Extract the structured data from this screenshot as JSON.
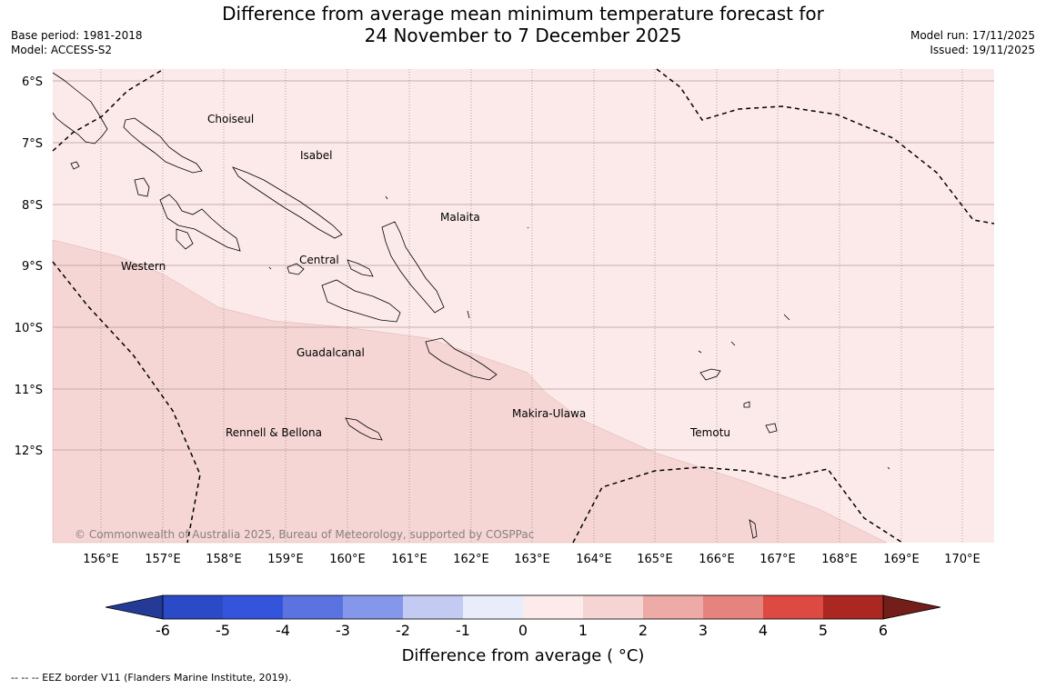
{
  "title": {
    "line1": "Difference from average mean minimum temperature forecast for",
    "line2": "24 November to 7 December 2025"
  },
  "meta_left": {
    "base_period": "Base period: 1981-2018",
    "model": "Model: ACCESS-S2"
  },
  "meta_right": {
    "model_run": "Model run: 17/11/2025",
    "issued": "Issued: 19/11/2025"
  },
  "map": {
    "lat_labels": [
      "6°S",
      "7°S",
      "8°S",
      "9°S",
      "10°S",
      "11°S",
      "12°S"
    ],
    "lon_labels": [
      "156°E",
      "157°E",
      "158°E",
      "159°E",
      "160°E",
      "161°E",
      "162°E",
      "163°E",
      "164°E",
      "165°E",
      "166°E",
      "167°E",
      "168°E",
      "169°E",
      "170°E"
    ],
    "regions": {
      "choiseul": "Choiseul",
      "isabel": "Isabel",
      "malaita": "Malaita",
      "central": "Central",
      "western": "Western",
      "guadalcanal": "Guadalcanal",
      "makira": "Makira-Ulawa",
      "rennell": "Rennell & Bellona",
      "temotu": "Temotu"
    },
    "copyright": "© Commonwealth of Australia 2025, Bureau of Meteorology, supported by COSPPac",
    "zone_colors": {
      "range_0_1": "#fbeae9",
      "range_1_2": "#f5d6d5"
    }
  },
  "colorbar": {
    "ticks": [
      "-6",
      "-5",
      "-4",
      "-3",
      "-2",
      "-1",
      "0",
      "1",
      "2",
      "3",
      "4",
      "5",
      "6"
    ],
    "label": "Difference from average ( °C)",
    "colors": [
      "#253a96",
      "#2a4ac8",
      "#3454dc",
      "#5b73e1",
      "#8597ea",
      "#c3cbf3",
      "#e8ecfb",
      "#fcebea",
      "#f6d4d3",
      "#edaaa7",
      "#e5847e",
      "#dc4a42",
      "#aa2722",
      "#721e19"
    ]
  },
  "footer": "--  --  -- EEZ border V11 (Flanders Marine Institute, 2019)."
}
